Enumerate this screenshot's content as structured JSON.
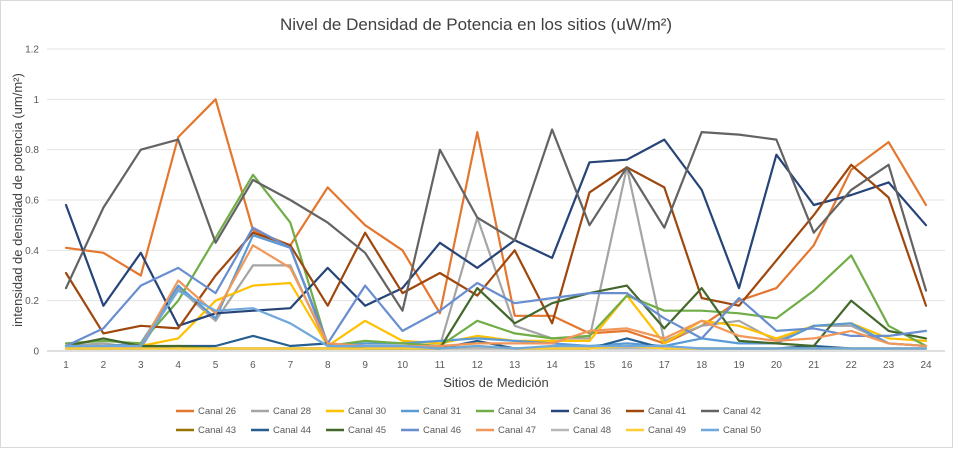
{
  "chart_data": {
    "type": "line",
    "title": "Nivel de Densidad de Potencia en los sitios (uW/m²)",
    "xlabel": "Sitios de Medición",
    "ylabel": "intensidad de densidad de potencia (um/m²)",
    "ylim": [
      0,
      1.2
    ],
    "yticks": [
      "0",
      "0.2",
      "0.4",
      "0.6",
      "0.8",
      "1",
      "1.2"
    ],
    "grid": true,
    "legend_position": "bottom",
    "categories": [
      "1",
      "2",
      "3",
      "4",
      "5",
      "6",
      "7",
      "8",
      "9",
      "10",
      "11",
      "12",
      "13",
      "14",
      "15",
      "16",
      "17",
      "18",
      "19",
      "20",
      "21",
      "22",
      "23",
      "24"
    ],
    "series": [
      {
        "name": "Canal 26",
        "color": "#e4772f",
        "values": [
          0.41,
          0.39,
          0.3,
          0.85,
          1.0,
          0.48,
          0.42,
          0.65,
          0.5,
          0.4,
          0.15,
          0.87,
          0.14,
          0.14,
          0.07,
          0.08,
          0.03,
          0.1,
          0.2,
          0.25,
          0.42,
          0.72,
          0.83,
          0.58
        ]
      },
      {
        "name": "Canal 28",
        "color": "#a5a5a5",
        "values": [
          0.02,
          0.03,
          0.01,
          0.25,
          0.12,
          0.34,
          0.34,
          0.02,
          0.01,
          0.01,
          0.02,
          0.53,
          0.1,
          0.05,
          0.05,
          0.73,
          0.04,
          0.1,
          0.12,
          0.04,
          0.1,
          0.1,
          0.03,
          0.02
        ]
      },
      {
        "name": "Canal 30",
        "color": "#ffc000",
        "values": [
          0.02,
          0.02,
          0.02,
          0.05,
          0.2,
          0.26,
          0.27,
          0.02,
          0.12,
          0.04,
          0.03,
          0.06,
          0.04,
          0.04,
          0.04,
          0.22,
          0.03,
          0.12,
          0.1,
          0.05,
          0.1,
          0.11,
          0.05,
          0.04
        ]
      },
      {
        "name": "Canal 31",
        "color": "#5b9bd5",
        "values": [
          0.02,
          0.02,
          0.03,
          0.26,
          0.13,
          0.46,
          0.41,
          0.02,
          0.03,
          0.03,
          0.04,
          0.05,
          0.04,
          0.03,
          0.02,
          0.03,
          0.02,
          0.05,
          0.03,
          0.03,
          0.1,
          0.11,
          0.03,
          0.02
        ]
      },
      {
        "name": "Canal 34",
        "color": "#70ad47",
        "values": [
          0.03,
          0.04,
          0.03,
          0.2,
          0.45,
          0.7,
          0.51,
          0.02,
          0.04,
          0.03,
          0.02,
          0.12,
          0.07,
          0.05,
          0.06,
          0.22,
          0.16,
          0.16,
          0.15,
          0.13,
          0.24,
          0.38,
          0.1,
          0.02
        ]
      },
      {
        "name": "Canal 36",
        "color": "#264478",
        "values": [
          0.58,
          0.18,
          0.39,
          0.1,
          0.15,
          0.16,
          0.17,
          0.33,
          0.18,
          0.25,
          0.43,
          0.33,
          0.44,
          0.37,
          0.75,
          0.76,
          0.84,
          0.64,
          0.25,
          0.78,
          0.58,
          0.62,
          0.67,
          0.5
        ]
      },
      {
        "name": "Canal 41",
        "color": "#9e480e",
        "values": [
          0.31,
          0.07,
          0.1,
          0.09,
          0.3,
          0.47,
          0.42,
          0.18,
          0.47,
          0.23,
          0.31,
          0.22,
          0.4,
          0.11,
          0.63,
          0.73,
          0.65,
          0.21,
          0.18,
          0.36,
          0.54,
          0.74,
          0.61,
          0.18
        ]
      },
      {
        "name": "Canal 42",
        "color": "#636363",
        "values": [
          0.25,
          0.57,
          0.8,
          0.84,
          0.43,
          0.68,
          0.6,
          0.51,
          0.39,
          0.16,
          0.8,
          0.53,
          0.44,
          0.88,
          0.5,
          0.73,
          0.49,
          0.87,
          0.86,
          0.84,
          0.47,
          0.64,
          0.74,
          0.24
        ]
      },
      {
        "name": "Canal 43",
        "color": "#997300",
        "values": [
          0.01,
          0.01,
          0.01,
          0.01,
          0.01,
          0.01,
          0.01,
          0.01,
          0.01,
          0.01,
          0.01,
          0.01,
          0.01,
          0.01,
          0.01,
          0.02,
          0.01,
          0.01,
          0.01,
          0.01,
          0.01,
          0.01,
          0.01,
          0.01
        ]
      },
      {
        "name": "Canal 44",
        "color": "#255e91",
        "values": [
          0.01,
          0.01,
          0.01,
          0.02,
          0.02,
          0.06,
          0.02,
          0.03,
          0.01,
          0.01,
          0.01,
          0.04,
          0.01,
          0.01,
          0.01,
          0.05,
          0.01,
          0.01,
          0.01,
          0.01,
          0.02,
          0.01,
          0.01,
          0.01
        ]
      },
      {
        "name": "Canal 45",
        "color": "#43682b",
        "values": [
          0.02,
          0.05,
          0.02,
          0.02,
          0.01,
          0.01,
          0.01,
          0.01,
          0.01,
          0.01,
          0.01,
          0.25,
          0.11,
          0.19,
          0.23,
          0.26,
          0.09,
          0.25,
          0.04,
          0.03,
          0.02,
          0.2,
          0.08,
          0.05
        ]
      },
      {
        "name": "Canal 46",
        "color": "#698ed0",
        "values": [
          0.02,
          0.09,
          0.26,
          0.33,
          0.23,
          0.49,
          0.41,
          0.03,
          0.26,
          0.08,
          0.16,
          0.27,
          0.19,
          0.21,
          0.23,
          0.23,
          0.13,
          0.05,
          0.21,
          0.08,
          0.09,
          0.06,
          0.06,
          0.08
        ]
      },
      {
        "name": "Canal 47",
        "color": "#f1975a",
        "values": [
          0.02,
          0.02,
          0.02,
          0.28,
          0.15,
          0.42,
          0.33,
          0.03,
          0.02,
          0.02,
          0.02,
          0.03,
          0.03,
          0.03,
          0.08,
          0.09,
          0.05,
          0.12,
          0.06,
          0.04,
          0.05,
          0.08,
          0.03,
          0.02
        ]
      },
      {
        "name": "Canal 48",
        "color": "#b7b7b7",
        "values": [
          0.01,
          0.01,
          0.01,
          0.01,
          0.01,
          0.01,
          0.01,
          0.01,
          0.01,
          0.01,
          0.01,
          0.01,
          0.01,
          0.01,
          0.01,
          0.01,
          0.01,
          0.01,
          0.01,
          0.01,
          0.01,
          0.01,
          0.01,
          0.01
        ]
      },
      {
        "name": "Canal 49",
        "color": "#ffcd33",
        "values": [
          0.01,
          0.01,
          0.01,
          0.01,
          0.01,
          0.01,
          0.01,
          0.01,
          0.01,
          0.01,
          0.01,
          0.02,
          0.01,
          0.01,
          0.01,
          0.02,
          0.01,
          0.01,
          0.01,
          0.01,
          0.01,
          0.01,
          0.01,
          0.01
        ]
      },
      {
        "name": "Canal 50",
        "color": "#6fa8dc",
        "values": [
          0.02,
          0.02,
          0.02,
          0.24,
          0.16,
          0.17,
          0.11,
          0.02,
          0.02,
          0.02,
          0.01,
          0.02,
          0.01,
          0.02,
          0.02,
          0.02,
          0.02,
          0.01,
          0.01,
          0.01,
          0.01,
          0.01,
          0.01,
          0.01
        ]
      }
    ]
  }
}
